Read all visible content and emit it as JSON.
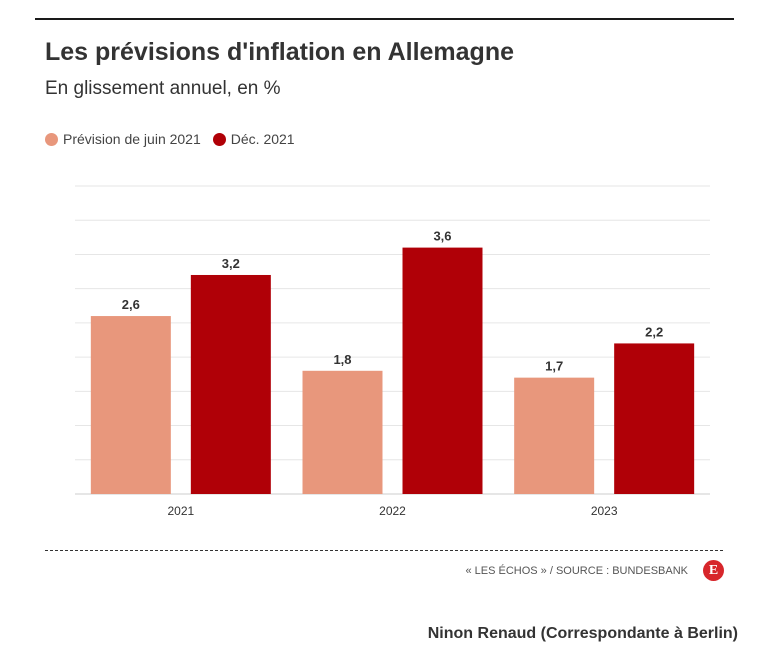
{
  "header": {
    "title": "Les prévisions d'inflation en Allemagne",
    "subtitle": "En glissement annuel, en %"
  },
  "legend": [
    {
      "label": "Prévision de juin 2021",
      "color": "#e8977c"
    },
    {
      "label": "Déc. 2021",
      "color": "#b00007"
    }
  ],
  "chart_data": {
    "type": "bar",
    "title": "Les prévisions d'inflation en Allemagne",
    "subtitle": "En glissement annuel, en %",
    "categories": [
      "2021",
      "2022",
      "2023"
    ],
    "series": [
      {
        "name": "Prévision de juin 2021",
        "values": [
          2.6,
          1.8,
          1.7
        ],
        "labels": [
          "2,6",
          "1,8",
          "1,7"
        ],
        "color": "#e8977c"
      },
      {
        "name": "Déc. 2021",
        "values": [
          3.2,
          3.6,
          2.2
        ],
        "labels": [
          "3,2",
          "3,6",
          "2,2"
        ],
        "color": "#b00007"
      }
    ],
    "ylim": [
      0,
      4.5
    ],
    "grid": true,
    "legend_position": "top-left"
  },
  "footer": {
    "source": "« LES ÉCHOS » / SOURCE : BUNDESBANK",
    "logo_letter": "E",
    "author": "Ninon Renaud (Correspondante à Berlin)"
  }
}
